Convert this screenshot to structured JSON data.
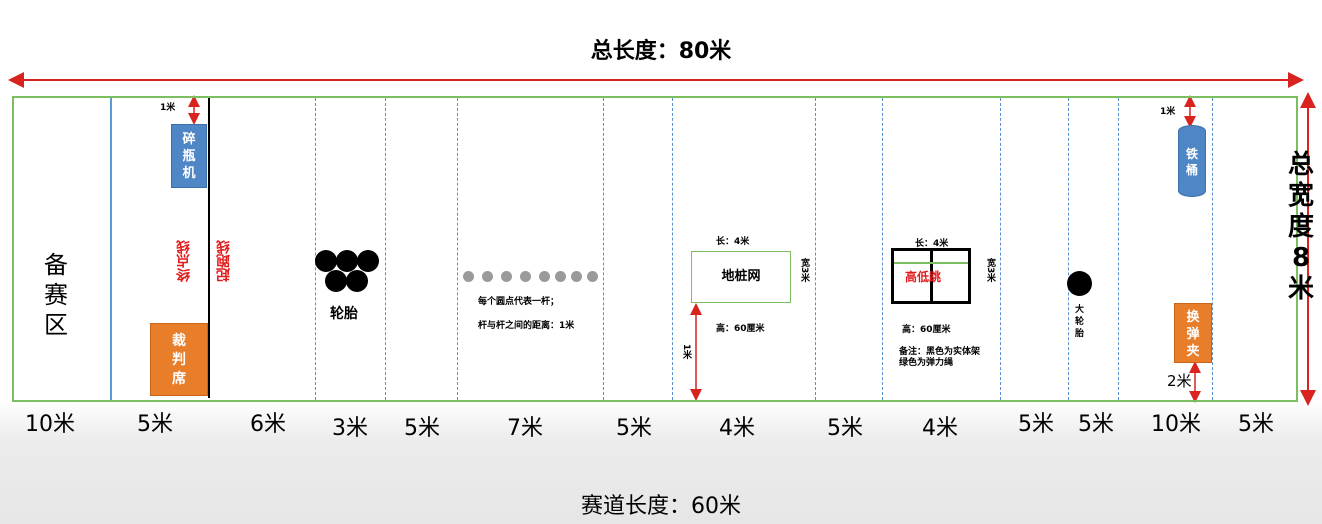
{
  "header": {
    "total_length": "总长度：80米"
  },
  "footer": {
    "track_length": "赛道长度：60米"
  },
  "side": {
    "total_width_chars": [
      "总",
      "宽",
      "度",
      "8",
      "米"
    ]
  },
  "zones": {
    "prep": "备赛区",
    "bottle_machine": [
      "碎",
      "瓶",
      "机"
    ],
    "judge": [
      "裁",
      "判",
      "席"
    ],
    "finish_line": "终点线",
    "start_line": "起跑线",
    "tires": "轮胎",
    "poles_note1": "每个圆点代表一杆；",
    "poles_note2": "杆与杆之间的距离：1米",
    "ground_net": "地桩网",
    "ground_net_length": "长：4米",
    "ground_net_width": "宽3米",
    "ground_net_height": "高：60厘米",
    "hurdle": "高低跳",
    "hurdle_length": "长：4米",
    "hurdle_width": "宽3米",
    "hurdle_height": "高：60厘米",
    "hurdle_note1": "备注：黑色为实体架",
    "hurdle_note2": "绿色为弹力绳",
    "big_tire": [
      "大",
      "轮",
      "胎"
    ],
    "barrel": [
      "铁",
      "桶"
    ],
    "magazine": [
      "换",
      "弹",
      "夹"
    ],
    "dist_1m_a": "1米",
    "dist_1m_b": "1米",
    "dist_1m_c": "1米",
    "dist_2m": "2米"
  },
  "segments": [
    "10米",
    "5米",
    "6米",
    "3米",
    "5米",
    "7米",
    "5米",
    "4米",
    "5米",
    "4米",
    "5米",
    "5米",
    "10米",
    "5米"
  ],
  "colors": {
    "field_border": "#7dbf60",
    "dash": "#5a8fd0",
    "arrow": "#d9231f",
    "blue_box": "#4f86c6",
    "orange_box": "#e87d2a"
  }
}
